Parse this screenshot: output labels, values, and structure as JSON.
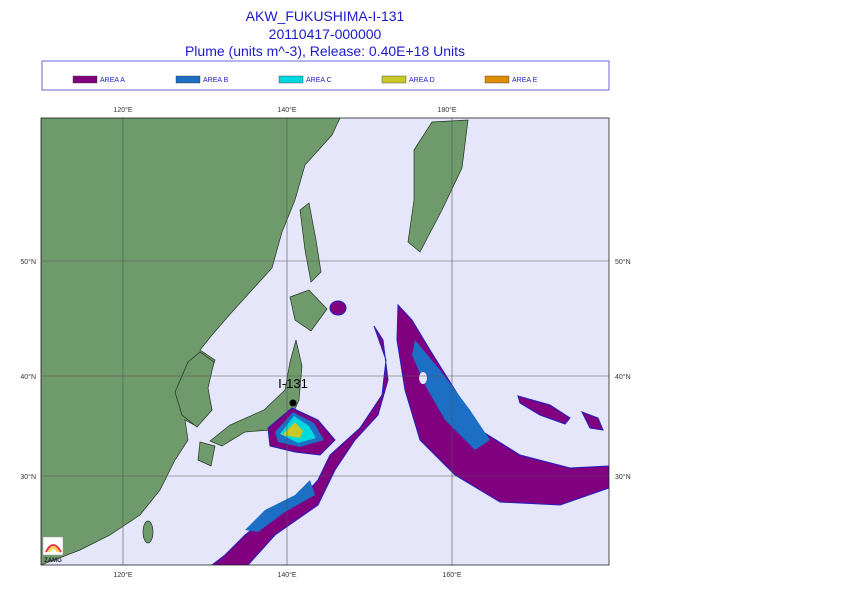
{
  "header": {
    "title": "AKW_FUKUSHIMA-I-131",
    "date": "20110417-000000",
    "subtitle": "Plume (units m^-3), Release:  0.40E+18 Units"
  },
  "legend": [
    {
      "label": "AREA A",
      "color": "#800080"
    },
    {
      "label": "AREA B",
      "color": "#1c6fc4"
    },
    {
      "label": "AREA C",
      "color": "#00d8e0"
    },
    {
      "label": "AREA D",
      "color": "#c8c828"
    },
    {
      "label": "AREA E",
      "color": "#e08c00"
    }
  ],
  "map": {
    "top_labels": [
      "120°E",
      "140°E",
      "180°E"
    ],
    "bottom_labels": [
      "120°E",
      "140°E",
      "160°E"
    ],
    "left_labels": [
      "50°N",
      "40°N",
      "30°N"
    ],
    "right_labels": [
      "50°N",
      "40°N",
      "30°N"
    ],
    "source_label": "I-131",
    "logo": "ZAMG"
  }
}
